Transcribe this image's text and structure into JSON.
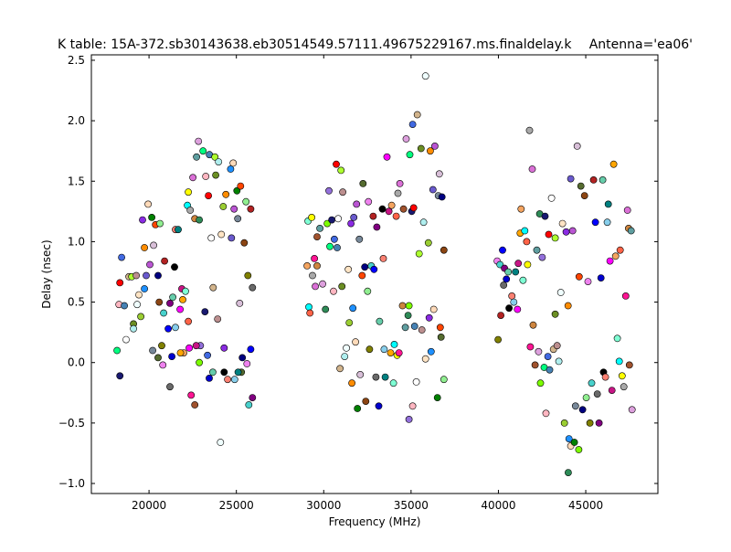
{
  "chart_data": {
    "type": "scatter",
    "title": "K table: 15A-372.sb30143638.eb30514549.57111.49675229167.ms.finaldelay.k",
    "subtitle": "Antenna='ea06'",
    "xlabel": "Frequency (MHz)",
    "ylabel": "Delay (nsec)",
    "xlim": [
      16700,
      49130
    ],
    "ylim": [
      -1.083,
      2.545
    ],
    "xticks": [
      20000,
      25000,
      30000,
      35000,
      40000,
      45000
    ],
    "yticks": [
      -1.0,
      -0.5,
      0.0,
      0.5,
      1.0,
      1.5,
      2.0,
      2.5
    ],
    "ytick_labels": [
      "−1.0",
      "−0.5",
      "0.0",
      "0.5",
      "1.0",
      "1.5",
      "2.0",
      "2.5"
    ],
    "grid": false,
    "marker_colors": [
      "#00ff7f",
      "#c71585",
      "#000080",
      "#6b8e23",
      "#da70d6",
      "#800080",
      "#6a5acd",
      "#191970",
      "#ffa500",
      "#8b4513",
      "#bc8f8f",
      "#cd853f",
      "#0000cd",
      "#ffdab9",
      "#ffb6c1",
      "#f4a460",
      "#90ee90",
      "#afeeee",
      "#a0522d",
      "#66cdaa",
      "#ba55d3",
      "#4169e1",
      "#7fffd4",
      "#ee82ee",
      "#f0ffff",
      "#5f9ea0",
      "#000000",
      "#008000",
      "#ff0000",
      "#00ffff",
      "#808000",
      "#ffe4c4",
      "#dda0dd",
      "#fa8072",
      "#778899",
      "#4682b4",
      "#ff6347",
      "#48d1cc",
      "#9acd32",
      "#2e8b57",
      "#87ceeb",
      "#d8bfd8",
      "#ffffff",
      "#ffff00",
      "#b22222",
      "#8a2be2",
      "#7cfc00",
      "#008080",
      "#ff4500",
      "#d2b48c",
      "#a9a9a9",
      "#0000ff",
      "#ff8c00",
      "#9370db",
      "#ff00ff",
      "#556b2f",
      "#adff2f",
      "#ff1493",
      "#696969",
      "#1e90ff"
    ],
    "points": [
      [
        18170,
        0.1
      ],
      [
        18330,
        -0.11
      ],
      [
        18280,
        0.48
      ],
      [
        18430,
        0.87
      ],
      [
        18330,
        0.66
      ],
      [
        18590,
        0.47
      ],
      [
        18690,
        0.19
      ],
      [
        18850,
        0.71
      ],
      [
        19010,
        0.71
      ],
      [
        19110,
        0.32
      ],
      [
        19270,
        0.72
      ],
      [
        19110,
        0.28
      ],
      [
        19320,
        0.48
      ],
      [
        19420,
        0.56
      ],
      [
        19530,
        0.38
      ],
      [
        19630,
        1.18
      ],
      [
        19740,
        0.95
      ],
      [
        19740,
        0.61
      ],
      [
        19840,
        0.72
      ],
      [
        19950,
        1.31
      ],
      [
        20050,
        0.81
      ],
      [
        20160,
        1.2
      ],
      [
        20210,
        0.1
      ],
      [
        20260,
        0.97
      ],
      [
        20370,
        1.14
      ],
      [
        20520,
        0.04
      ],
      [
        20520,
        0.72
      ],
      [
        20580,
        0.5
      ],
      [
        20630,
        1.15
      ],
      [
        20790,
        -0.02
      ],
      [
        20730,
        0.14
      ],
      [
        20840,
        0.41
      ],
      [
        20890,
        0.84
      ],
      [
        21100,
        0.28
      ],
      [
        21200,
        -0.2
      ],
      [
        21200,
        0.49
      ],
      [
        21310,
        0.05
      ],
      [
        21360,
        0.54
      ],
      [
        21460,
        0.79
      ],
      [
        21510,
        1.1
      ],
      [
        21510,
        0.29
      ],
      [
        21670,
        1.1
      ],
      [
        21780,
        0.44
      ],
      [
        21880,
        0.61
      ],
      [
        21930,
        0.52
      ],
      [
        21990,
        0.08
      ],
      [
        22090,
        0.59
      ],
      [
        22200,
        1.3
      ],
      [
        22250,
        0.34
      ],
      [
        22250,
        1.41
      ],
      [
        22360,
        1.26
      ],
      [
        22410,
        -0.27
      ],
      [
        22510,
        1.53
      ],
      [
        22620,
        1.19
      ],
      [
        22620,
        -0.35
      ],
      [
        22720,
        1.7
      ],
      [
        22830,
        1.83
      ],
      [
        22880,
        1.18
      ],
      [
        22880,
        0.0
      ],
      [
        22940,
        0.14
      ],
      [
        23090,
        1.75
      ],
      [
        23200,
        0.42
      ],
      [
        23250,
        1.54
      ],
      [
        23350,
        0.06
      ],
      [
        23400,
        1.38
      ],
      [
        23460,
        1.72
      ],
      [
        23560,
        1.03
      ],
      [
        23670,
        0.62
      ],
      [
        23770,
        1.7
      ],
      [
        23820,
        1.55
      ],
      [
        23930,
        0.36
      ],
      [
        23980,
        1.66
      ],
      [
        24090,
        -0.66
      ],
      [
        24140,
        1.06
      ],
      [
        24250,
        1.29
      ],
      [
        24300,
        0.12
      ],
      [
        24400,
        1.39
      ],
      [
        24670,
        1.6
      ],
      [
        24720,
        1.03
      ],
      [
        24820,
        1.65
      ],
      [
        24870,
        1.27
      ],
      [
        25030,
        1.42
      ],
      [
        25080,
        1.19
      ],
      [
        25190,
        0.49
      ],
      [
        25240,
        1.46
      ],
      [
        25290,
        -0.08
      ],
      [
        25340,
        0.04
      ],
      [
        25450,
        0.99
      ],
      [
        25550,
        1.33
      ],
      [
        25610,
        -0.01
      ],
      [
        25660,
        0.72
      ],
      [
        25710,
        -0.35
      ],
      [
        25820,
        1.27
      ],
      [
        25820,
        0.11
      ],
      [
        25920,
        0.62
      ],
      [
        25920,
        -0.29
      ],
      [
        23450,
        -0.13
      ],
      [
        23650,
        -0.08
      ],
      [
        24300,
        -0.08
      ],
      [
        24500,
        -0.14
      ],
      [
        24900,
        -0.14
      ],
      [
        25100,
        -0.08
      ],
      [
        22300,
        0.12
      ],
      [
        22700,
        0.14
      ],
      [
        21800,
        0.08
      ],
      [
        29050,
        0.8
      ],
      [
        29100,
        1.17
      ],
      [
        29150,
        0.46
      ],
      [
        29210,
        0.41
      ],
      [
        29310,
        1.2
      ],
      [
        29360,
        0.72
      ],
      [
        29470,
        0.86
      ],
      [
        29520,
        0.63
      ],
      [
        29620,
        0.8
      ],
      [
        29620,
        1.04
      ],
      [
        29780,
        1.11
      ],
      [
        29940,
        0.65
      ],
      [
        30100,
        0.44
      ],
      [
        30200,
        1.15
      ],
      [
        30300,
        1.42
      ],
      [
        30350,
        0.96
      ],
      [
        30460,
        1.18
      ],
      [
        30560,
        0.59
      ],
      [
        30610,
        1.02
      ],
      [
        30720,
        1.64
      ],
      [
        30770,
        0.95
      ],
      [
        30830,
        1.19
      ],
      [
        30930,
        -0.05
      ],
      [
        30990,
        1.59
      ],
      [
        31040,
        0.63
      ],
      [
        31090,
        1.41
      ],
      [
        31200,
        0.05
      ],
      [
        31300,
        0.12
      ],
      [
        31410,
        0.77
      ],
      [
        31460,
        0.33
      ],
      [
        31560,
        1.15
      ],
      [
        31610,
        -0.17
      ],
      [
        31670,
        0.45
      ],
      [
        31720,
        1.2
      ],
      [
        31820,
        0.17
      ],
      [
        31880,
        1.31
      ],
      [
        31930,
        -0.38
      ],
      [
        32040,
        1.02
      ],
      [
        32090,
        -0.1
      ],
      [
        32200,
        0.72
      ],
      [
        32250,
        1.48
      ],
      [
        32350,
        0.79
      ],
      [
        32410,
        -0.32
      ],
      [
        32510,
        0.59
      ],
      [
        32560,
        1.33
      ],
      [
        32620,
        0.11
      ],
      [
        32720,
        0.8
      ],
      [
        32830,
        1.21
      ],
      [
        32880,
        0.77
      ],
      [
        32990,
        -0.12
      ],
      [
        33040,
        1.12
      ],
      [
        33150,
        -0.36
      ],
      [
        33200,
        0.34
      ],
      [
        33360,
        1.27
      ],
      [
        33410,
        0.86
      ],
      [
        33460,
        0.11
      ],
      [
        33520,
        -0.12
      ],
      [
        33620,
        1.7
      ],
      [
        33730,
        1.25
      ],
      [
        33830,
        0.08
      ],
      [
        33890,
        1.3
      ],
      [
        33990,
        -0.17
      ],
      [
        34040,
        0.15
      ],
      [
        34150,
        1.21
      ],
      [
        34200,
        0.06
      ],
      [
        34250,
        1.4
      ],
      [
        34310,
        0.08
      ],
      [
        34360,
        1.48
      ],
      [
        34510,
        0.47
      ],
      [
        34570,
        1.27
      ],
      [
        34670,
        0.29
      ],
      [
        34720,
        1.85
      ],
      [
        34830,
        0.39
      ],
      [
        34880,
        0.47
      ],
      [
        34880,
        -0.47
      ],
      [
        34930,
        1.72
      ],
      [
        35040,
        1.25
      ],
      [
        35090,
        -0.36
      ],
      [
        35090,
        1.97
      ],
      [
        35150,
        1.28
      ],
      [
        35200,
        0.3
      ],
      [
        35300,
        -0.16
      ],
      [
        35360,
        2.05
      ],
      [
        35460,
        0.9
      ],
      [
        35570,
        1.77
      ],
      [
        35620,
        0.27
      ],
      [
        35720,
        1.16
      ],
      [
        35830,
        2.37
      ],
      [
        35830,
        0.03
      ],
      [
        35990,
        0.99
      ],
      [
        36040,
        0.37
      ],
      [
        36100,
        1.75
      ],
      [
        36150,
        0.09
      ],
      [
        36250,
        1.43
      ],
      [
        36300,
        0.44
      ],
      [
        36360,
        1.79
      ],
      [
        36510,
        -0.29
      ],
      [
        36560,
        1.38
      ],
      [
        36620,
        1.56
      ],
      [
        36670,
        0.29
      ],
      [
        36720,
        0.21
      ],
      [
        36770,
        1.37
      ],
      [
        36880,
        0.93
      ],
      [
        36880,
        -0.14
      ],
      [
        39930,
        0.84
      ],
      [
        39980,
        0.19
      ],
      [
        40090,
        0.81
      ],
      [
        40140,
        0.39
      ],
      [
        40240,
        0.93
      ],
      [
        40300,
        0.64
      ],
      [
        40350,
        0.78
      ],
      [
        40460,
        0.69
      ],
      [
        40560,
        0.75
      ],
      [
        40610,
        0.45
      ],
      [
        40770,
        0.55
      ],
      [
        40880,
        0.5
      ],
      [
        40980,
        0.75
      ],
      [
        41090,
        0.44
      ],
      [
        41140,
        0.82
      ],
      [
        41250,
        1.07
      ],
      [
        41300,
        1.27
      ],
      [
        41410,
        0.68
      ],
      [
        41510,
        1.09
      ],
      [
        41620,
        1.0
      ],
      [
        41670,
        0.81
      ],
      [
        41780,
        1.92
      ],
      [
        41830,
        0.13
      ],
      [
        41940,
        1.6
      ],
      [
        41990,
        0.31
      ],
      [
        42100,
        -0.02
      ],
      [
        42200,
        0.93
      ],
      [
        42300,
        0.09
      ],
      [
        42360,
        1.23
      ],
      [
        42410,
        -0.17
      ],
      [
        42510,
        0.87
      ],
      [
        42620,
        -0.04
      ],
      [
        42670,
        1.21
      ],
      [
        42720,
        -0.42
      ],
      [
        42830,
        0.05
      ],
      [
        42880,
        1.06
      ],
      [
        42930,
        -0.06
      ],
      [
        43040,
        1.36
      ],
      [
        43150,
        0.11
      ],
      [
        43250,
        1.03
      ],
      [
        43250,
        0.4
      ],
      [
        43360,
        0.14
      ],
      [
        43460,
        0.01
      ],
      [
        43570,
        0.58
      ],
      [
        43670,
        1.15
      ],
      [
        43780,
        -0.5
      ],
      [
        43880,
        1.08
      ],
      [
        43990,
        0.47
      ],
      [
        44040,
        -0.63
      ],
      [
        44140,
        1.52
      ],
      [
        44140,
        -0.69
      ],
      [
        44250,
        1.09
      ],
      [
        44350,
        -0.66
      ],
      [
        44410,
        -0.36
      ],
      [
        44510,
        1.79
      ],
      [
        44620,
        0.71
      ],
      [
        44720,
        1.46
      ],
      [
        44820,
        -0.39
      ],
      [
        44930,
        1.38
      ],
      [
        45030,
        -0.29
      ],
      [
        45130,
        0.67
      ],
      [
        45240,
        -0.5
      ],
      [
        45340,
        -0.17
      ],
      [
        45450,
        1.51
      ],
      [
        45550,
        1.16
      ],
      [
        45660,
        -0.26
      ],
      [
        45760,
        -0.5
      ],
      [
        45870,
        0.7
      ],
      [
        45970,
        1.51
      ],
      [
        46020,
        -0.08
      ],
      [
        46130,
        -0.12
      ],
      [
        46230,
        1.16
      ],
      [
        46290,
        1.31
      ],
      [
        46390,
        0.84
      ],
      [
        46500,
        -0.23
      ],
      [
        46600,
        1.64
      ],
      [
        46710,
        0.88
      ],
      [
        46810,
        0.2
      ],
      [
        46920,
        0.01
      ],
      [
        46970,
        0.93
      ],
      [
        47080,
        -0.11
      ],
      [
        47180,
        -0.2
      ],
      [
        47290,
        0.55
      ],
      [
        47390,
        1.26
      ],
      [
        47450,
        1.11
      ],
      [
        47500,
        -0.02
      ],
      [
        47600,
        1.09
      ],
      [
        47650,
        -0.39
      ],
      [
        44000,
        -0.91
      ],
      [
        44600,
        -0.72
      ]
    ]
  }
}
